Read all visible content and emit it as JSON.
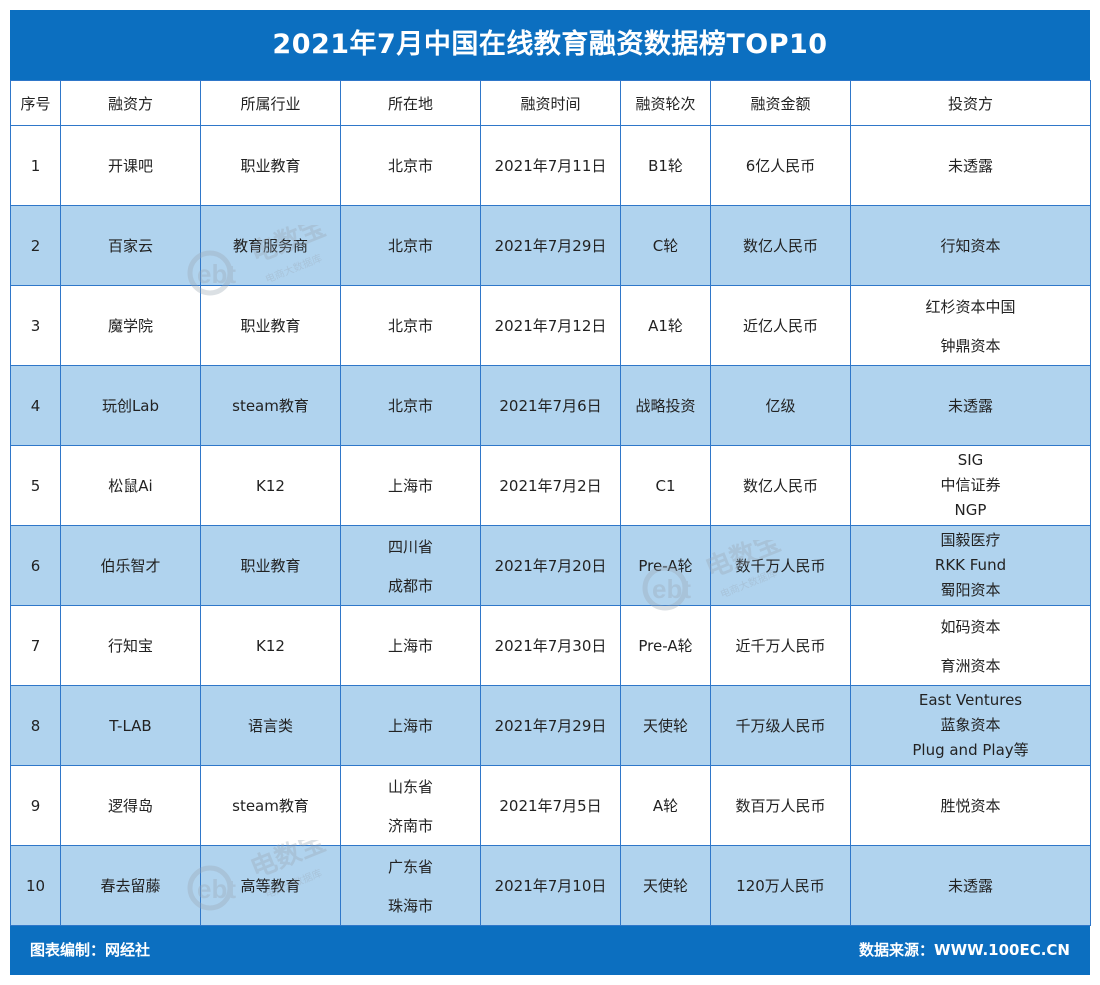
{
  "title": "2021年7月中国在线教育融资数据榜TOP10",
  "columns": [
    "序号",
    "融资方",
    "所属行业",
    "所在地",
    "融资时间",
    "融资轮次",
    "融资金额",
    "投资方"
  ],
  "rows": [
    {
      "no": "1",
      "company": "开课吧",
      "industry": "职业教育",
      "location": [
        "北京市"
      ],
      "date": "2021年7月11日",
      "round": "B1轮",
      "amount": "6亿人民币",
      "investors": [
        "未透露"
      ]
    },
    {
      "no": "2",
      "company": "百家云",
      "industry": "教育服务商",
      "location": [
        "北京市"
      ],
      "date": "2021年7月29日",
      "round": "C轮",
      "amount": "数亿人民币",
      "investors": [
        "行知资本"
      ]
    },
    {
      "no": "3",
      "company": "魔学院",
      "industry": "职业教育",
      "location": [
        "北京市"
      ],
      "date": "2021年7月12日",
      "round": "A1轮",
      "amount": "近亿人民币",
      "investors": [
        "红杉资本中国",
        "钟鼎资本"
      ]
    },
    {
      "no": "4",
      "company": "玩创Lab",
      "industry": "steam教育",
      "location": [
        "北京市"
      ],
      "date": "2021年7月6日",
      "round": "战略投资",
      "amount": "亿级",
      "investors": [
        "未透露"
      ]
    },
    {
      "no": "5",
      "company": "松鼠Ai",
      "industry": "K12",
      "location": [
        "上海市"
      ],
      "date": "2021年7月2日",
      "round": "C1",
      "amount": "数亿人民币",
      "investors": [
        "SIG",
        "中信证券",
        "NGP"
      ]
    },
    {
      "no": "6",
      "company": "伯乐智才",
      "industry": "职业教育",
      "location": [
        "四川省",
        "成都市"
      ],
      "date": "2021年7月20日",
      "round": "Pre-A轮",
      "amount": "数千万人民币",
      "investors": [
        "国毅医疗",
        "RKK Fund",
        "蜀阳资本"
      ]
    },
    {
      "no": "7",
      "company": "行知宝",
      "industry": "K12",
      "location": [
        "上海市"
      ],
      "date": "2021年7月30日",
      "round": "Pre-A轮",
      "amount": "近千万人民币",
      "investors": [
        "如码资本",
        "育洲资本"
      ]
    },
    {
      "no": "8",
      "company": "T-LAB",
      "industry": "语言类",
      "location": [
        "上海市"
      ],
      "date": "2021年7月29日",
      "round": "天使轮",
      "amount": "千万级人民币",
      "investors": [
        "East Ventures",
        "蓝象资本",
        "Plug and Play等"
      ]
    },
    {
      "no": "9",
      "company": "逻得岛",
      "industry": "steam教育",
      "location": [
        "山东省",
        "济南市"
      ],
      "date": "2021年7月5日",
      "round": "A轮",
      "amount": "数百万人民币",
      "investors": [
        "胜悦资本"
      ]
    },
    {
      "no": "10",
      "company": "春去留藤",
      "industry": "高等教育",
      "location": [
        "广东省",
        "珠海市"
      ],
      "date": "2021年7月10日",
      "round": "天使轮",
      "amount": "120万人民币",
      "investors": [
        "未透露"
      ]
    }
  ],
  "footer": {
    "left": "图表编制：网经社",
    "right": "数据来源：WWW.100EC.CN"
  },
  "watermark": {
    "brand": "电数宝",
    "sub": "电商大数据库",
    "logo": "ebt"
  },
  "colors": {
    "header_blue": "#0c6fc0",
    "stripe": "#b0d3ee",
    "border": "#2f77c9"
  }
}
